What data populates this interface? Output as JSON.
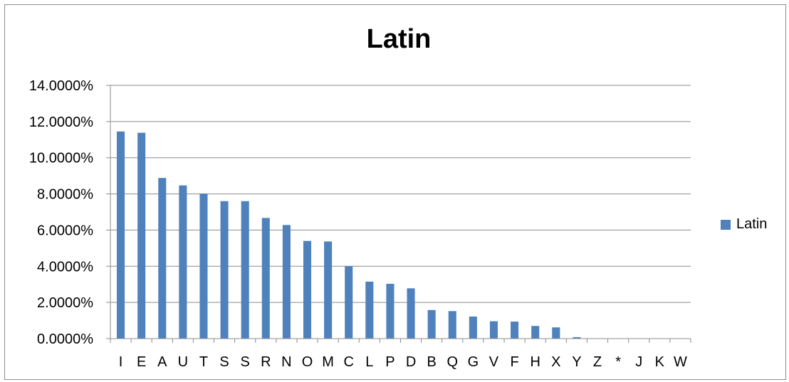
{
  "chart_data": {
    "type": "bar",
    "title": "Latin",
    "xlabel": "",
    "ylabel": "",
    "categories": [
      "I",
      "E",
      "A",
      "U",
      "T",
      "S",
      "S",
      "R",
      "N",
      "O",
      "M",
      "C",
      "L",
      "P",
      "D",
      "B",
      "Q",
      "G",
      "V",
      "F",
      "H",
      "X",
      "Y",
      "Z",
      "*",
      "J",
      "K",
      "W"
    ],
    "series": [
      {
        "name": "Latin",
        "values": [
          11.45,
          11.38,
          8.88,
          8.47,
          8.02,
          7.6,
          7.6,
          6.67,
          6.28,
          5.4,
          5.37,
          4.0,
          3.15,
          3.03,
          2.78,
          1.58,
          1.52,
          1.22,
          0.96,
          0.94,
          0.7,
          0.62,
          0.08,
          0.0,
          0.0,
          0.0,
          0.0,
          0.0
        ]
      }
    ],
    "ylim": [
      0,
      14
    ],
    "yticks": [
      0,
      2,
      4,
      6,
      8,
      10,
      12,
      14
    ],
    "ytick_labels": [
      "0.0000%",
      "2.0000%",
      "4.0000%",
      "6.0000%",
      "8.0000%",
      "10.0000%",
      "12.0000%",
      "14.0000%"
    ],
    "grid": true,
    "legend_position": "right",
    "colors": {
      "bar": "#4f81bd",
      "grid": "#8c8c8c",
      "axis": "#8c8c8c",
      "text": "#000000"
    }
  }
}
